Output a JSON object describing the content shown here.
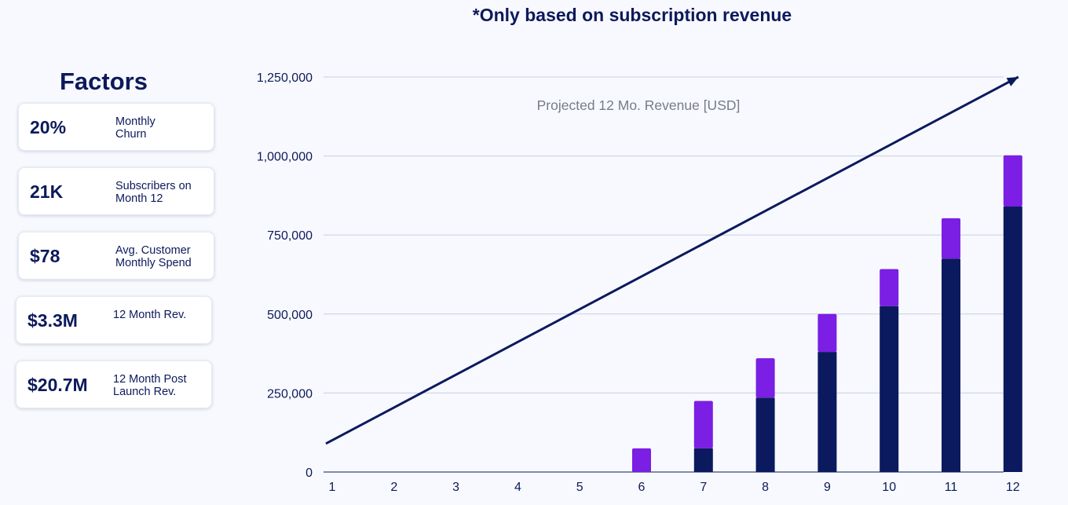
{
  "headline": "*Only based on subscription revenue",
  "factors": {
    "title": "Factors",
    "cards": [
      {
        "value": "20%",
        "label_line1": "Monthly",
        "label_line2": "Churn"
      },
      {
        "value": "21K",
        "label_line1": "Subscribers on",
        "label_line2": "Month 12"
      },
      {
        "value": "$78",
        "label_line1": "Avg. Customer",
        "label_line2": "Monthly Spend"
      },
      {
        "value": "$3.3M",
        "label_line1": "12 Month Rev.",
        "label_line2": ""
      },
      {
        "value": "$20.7M",
        "label_line1": "12 Month Post",
        "label_line2": "Launch Rev."
      }
    ]
  },
  "chart_data": {
    "type": "bar",
    "stacked": true,
    "title": "Projected 12 Mo. Revenue [USD]",
    "xlabel": "",
    "ylabel": "",
    "categories": [
      "1",
      "2",
      "3",
      "4",
      "5",
      "6",
      "7",
      "8",
      "9",
      "10",
      "11",
      "12"
    ],
    "ylim": [
      0,
      1250000
    ],
    "yticks": [
      0,
      250000,
      500000,
      750000,
      1000000,
      1250000
    ],
    "ytick_labels": [
      "0",
      "250,000",
      "500,000",
      "750,000",
      "1,000,000",
      "1,250,000"
    ],
    "grid": true,
    "series": [
      {
        "color": "#0b1a5e",
        "values": [
          0,
          0,
          0,
          0,
          0,
          0,
          75000,
          235000,
          380000,
          525000,
          675000,
          840000
        ]
      },
      {
        "color": "#7a1fe3",
        "values": [
          0,
          0,
          0,
          0,
          0,
          75000,
          150000,
          125000,
          120000,
          117000,
          128000,
          162000
        ]
      }
    ],
    "trend_arrow": {
      "color": "#0b1a5e",
      "from": {
        "x": "1",
        "y": 90000
      },
      "to": {
        "x": "12",
        "y": 1250000
      }
    }
  },
  "colors": {
    "text": "#0c1a5b",
    "grid": "#c9cfe0",
    "background": "#f8f9fe"
  }
}
